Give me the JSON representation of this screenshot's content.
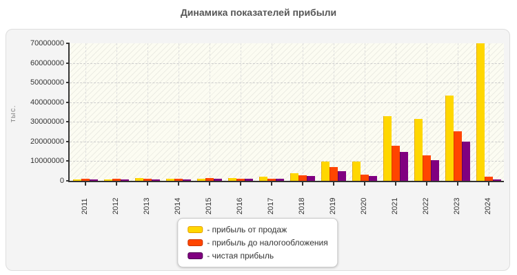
{
  "title": "Динамика показателей прибыли",
  "chart_data": {
    "type": "bar",
    "title": "Динамика показателей прибыли",
    "xlabel": "",
    "ylabel": "тыс.",
    "ylim": [
      0,
      70000000
    ],
    "y_ticks": [
      0,
      10000000,
      20000000,
      30000000,
      40000000,
      50000000,
      60000000,
      70000000
    ],
    "grid": true,
    "legend_position": "bottom-center",
    "categories": [
      "2011",
      "2012",
      "2013",
      "2014",
      "2015",
      "2016",
      "2017",
      "2018",
      "2019",
      "2020",
      "2021",
      "2022",
      "2023",
      "2024"
    ],
    "series": [
      {
        "name": "прибыль от продаж",
        "color": "#FFD700",
        "edge_color": "#E6AC00",
        "values": [
          700000,
          800000,
          1400000,
          1100000,
          1200000,
          1500000,
          2000000,
          4000000,
          9900000,
          9900000,
          32800000,
          31400000,
          43500000,
          69900000
        ]
      },
      {
        "name": "прибыль до налогообложения",
        "color": "#FF4500",
        "edge_color": "#D93A00",
        "values": [
          1000000,
          1000000,
          900000,
          900000,
          1300000,
          1200000,
          1100000,
          2900000,
          6900000,
          3200000,
          17900000,
          12900000,
          25200000,
          2200000
        ]
      },
      {
        "name": "чистая прибыль",
        "color": "#800080",
        "edge_color": "#5C005C",
        "values": [
          800000,
          800000,
          700000,
          700000,
          900000,
          900000,
          900000,
          2300000,
          4900000,
          2600000,
          14700000,
          10500000,
          20100000,
          600000
        ]
      }
    ]
  },
  "legend": {
    "items": [
      {
        "label": "- прибыль от продаж",
        "color": "#FFD700",
        "border": "#E39B00"
      },
      {
        "label": "- прибыль до налогообложения",
        "color": "#FF4500",
        "border": "#C83200"
      },
      {
        "label": "- чистая прибыль",
        "color": "#800080",
        "border": "#4B0050"
      }
    ]
  },
  "colors": {
    "panel_bg": "#f4f4f4",
    "plot_bg": "#fcfcf2",
    "axis": "#333333",
    "grid": "#cccccc",
    "title_text": "#555555"
  }
}
